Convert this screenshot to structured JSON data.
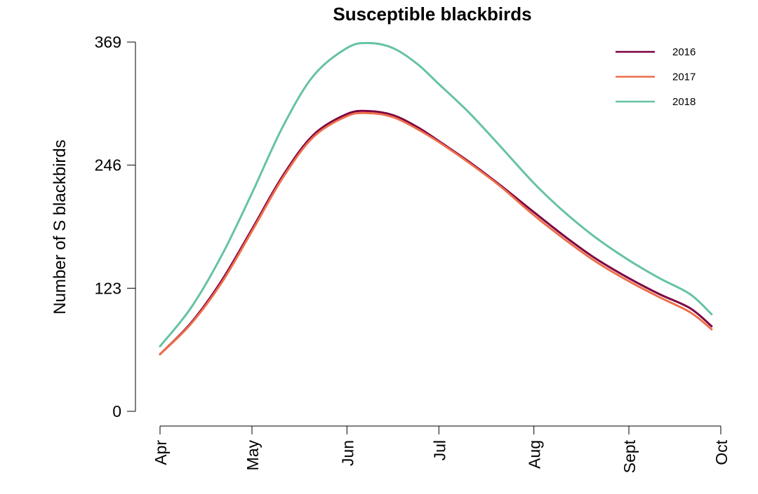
{
  "chart_data": {
    "type": "line",
    "title": "Susceptible blackbirds",
    "xlabel": "",
    "ylabel": "Number of S blackbirds",
    "x_tick_labels": [
      "Apr",
      "May",
      "Jun",
      "Jul",
      "Aug",
      "Sept",
      "Oct"
    ],
    "x_tick_dates": [
      "2000-04-01",
      "2000-05-01",
      "2000-06-01",
      "2000-07-01",
      "2000-08-01",
      "2000-09-01",
      "2000-10-01"
    ],
    "x_range": [
      "2000-04-01",
      "2000-10-01"
    ],
    "y_ticks": [
      0,
      123,
      246,
      369
    ],
    "y_tick_labels": [
      "0",
      "123",
      "246",
      "369"
    ],
    "ylim": [
      0,
      369
    ],
    "grid": false,
    "legend_position": "top-right",
    "x": [
      "2000-04-01",
      "2000-04-11",
      "2000-04-21",
      "2000-05-01",
      "2000-05-11",
      "2000-05-21",
      "2000-06-01",
      "2000-06-08",
      "2000-06-16",
      "2000-06-24",
      "2000-07-01",
      "2000-07-11",
      "2000-07-21",
      "2000-08-01",
      "2000-08-11",
      "2000-08-21",
      "2000-09-01",
      "2000-09-11",
      "2000-09-21",
      "2000-09-28"
    ],
    "series": [
      {
        "name": "2016",
        "color": "#7b0041",
        "values": [
          57,
          88,
          130,
          182,
          235,
          276,
          297,
          300,
          296,
          284,
          270,
          249,
          226,
          199,
          175,
          153,
          133,
          117,
          103,
          85
        ]
      },
      {
        "name": "2017",
        "color": "#ee6e4a",
        "values": [
          57,
          87,
          128,
          180,
          233,
          274,
          295,
          298,
          294,
          282,
          269,
          248,
          225,
          196,
          172,
          150,
          130,
          114,
          99,
          82
        ]
      },
      {
        "name": "2018",
        "color": "#66c2a5",
        "values": [
          65,
          103,
          155,
          218,
          284,
          335,
          363,
          368,
          363,
          347,
          327,
          298,
          265,
          228,
          199,
          174,
          151,
          133,
          117,
          97
        ]
      }
    ]
  }
}
